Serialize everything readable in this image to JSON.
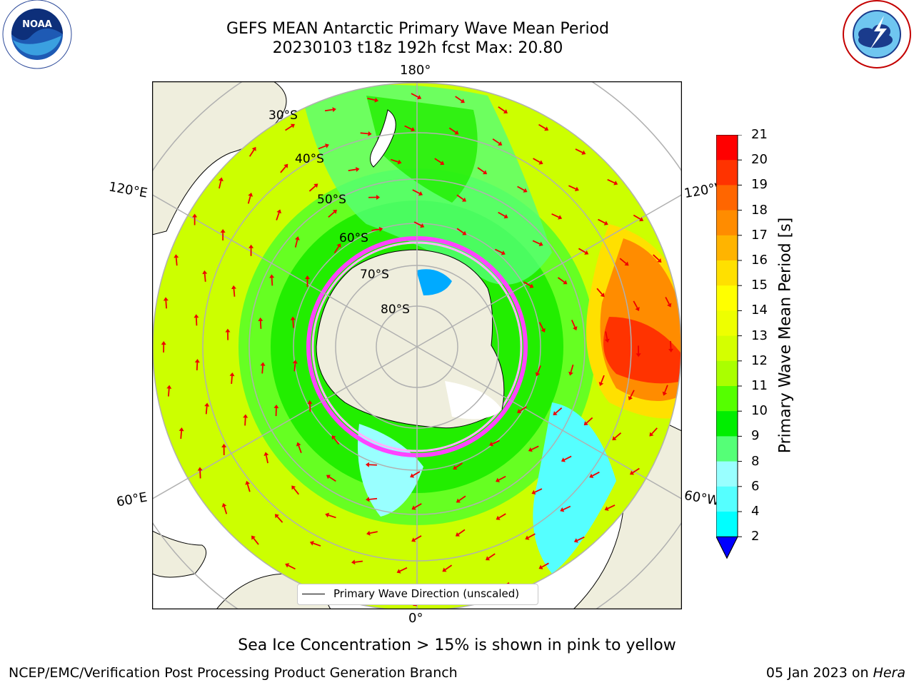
{
  "header": {
    "title_line1": "GEFS MEAN Antarctic Primary Wave Mean Period",
    "title_line2": "20230103 t18z 192h fcst   Max: 20.80"
  },
  "logos": {
    "left": {
      "name": "NOARA-logo",
      "text": "NOAA",
      "ring_text": "NATIONAL OCEANIC AND ATMOSPHERIC ADMINISTRATION · U.S. DEPARTMENT OF COMMERCE"
    },
    "right": {
      "name": "nws-logo",
      "ring_text": "NATIONAL WEATHER SERVICE"
    }
  },
  "map": {
    "projection": "south-polar-stereographic",
    "lon_labels": {
      "top": "180°",
      "bottom": "0°",
      "upper_left": "120°E",
      "upper_right": "120°W",
      "lower_left": "60°E",
      "lower_right": "60°W"
    },
    "lat_labels": [
      "30°S",
      "40°S",
      "50°S",
      "60°S",
      "70°S",
      "80°S"
    ],
    "legend_entry": "Primary Wave Direction (unscaled)"
  },
  "colorbar": {
    "label": "Primary Wave Mean Period [s]",
    "ticks": [
      "21",
      "20",
      "19",
      "18",
      "17",
      "16",
      "15",
      "14",
      "13",
      "12",
      "11",
      "10",
      "9",
      "8",
      "6",
      "4",
      "2"
    ],
    "colors": [
      "#ff0000",
      "#ff3300",
      "#ff6600",
      "#ff8c00",
      "#ffb400",
      "#ffe000",
      "#ffff00",
      "#eeff00",
      "#d4ff00",
      "#aaff00",
      "#55ff00",
      "#00ee00",
      "#55ff77",
      "#99ffff",
      "#55ffff",
      "#00ffff",
      "#00aaff",
      "#0066ff"
    ],
    "under_color": "#0000ff"
  },
  "notes": {
    "sea_ice": "Sea Ice Concentration > 15% is shown in pink to yellow"
  },
  "footer": {
    "left": "NCEP/EMC/Verification Post Processing Product Generation Branch",
    "right_prefix": "05 Jan 2023 on ",
    "right_machine": "Hera"
  }
}
